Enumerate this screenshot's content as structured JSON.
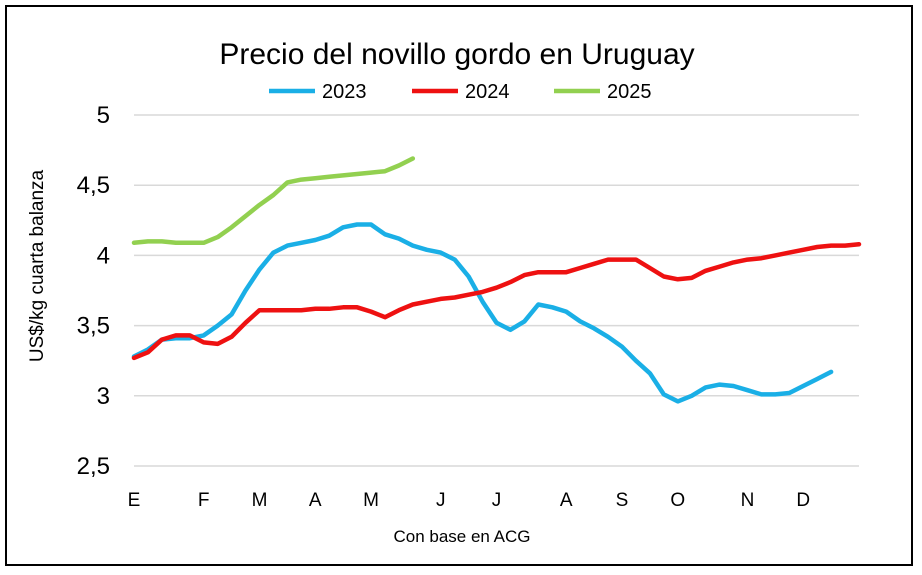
{
  "chart_data": {
    "type": "line",
    "title": "Precio del novillo gordo en Uruguay",
    "xlabel": "Con base en ACG",
    "ylabel": "US$/kg cuarta balanza",
    "ylim": [
      2.5,
      5
    ],
    "yticks": [
      {
        "value": 2.5,
        "label": "2,5"
      },
      {
        "value": 3,
        "label": "3"
      },
      {
        "value": 3.5,
        "label": "3,5"
      },
      {
        "value": 4,
        "label": "4"
      },
      {
        "value": 4.5,
        "label": "4,5"
      },
      {
        "value": 5,
        "label": "5"
      }
    ],
    "xlim": [
      1,
      53
    ],
    "xticks": [
      {
        "value": 1,
        "label": "E"
      },
      {
        "value": 6,
        "label": "F"
      },
      {
        "value": 10,
        "label": "M"
      },
      {
        "value": 14,
        "label": "A"
      },
      {
        "value": 18,
        "label": "M"
      },
      {
        "value": 23,
        "label": "J"
      },
      {
        "value": 27,
        "label": "J"
      },
      {
        "value": 32,
        "label": "A"
      },
      {
        "value": 36,
        "label": "S"
      },
      {
        "value": 40,
        "label": "O"
      },
      {
        "value": 45,
        "label": "N"
      },
      {
        "value": 49,
        "label": "D"
      }
    ],
    "grid": true,
    "legend_position": "top",
    "series": [
      {
        "name": "2023",
        "color": "#1AAFE6",
        "x": [
          1,
          2,
          3,
          4,
          5,
          6,
          7,
          8,
          9,
          10,
          11,
          12,
          13,
          14,
          15,
          16,
          17,
          18,
          19,
          20,
          21,
          22,
          23,
          24,
          25,
          26,
          27,
          28,
          29,
          30,
          31,
          32,
          33,
          34,
          35,
          36,
          37,
          38,
          39,
          40,
          41,
          42,
          43,
          44,
          45,
          46,
          47,
          48,
          49,
          50,
          51
        ],
        "values": [
          3.28,
          3.33,
          3.4,
          3.41,
          3.41,
          3.43,
          3.5,
          3.58,
          3.75,
          3.9,
          4.02,
          4.07,
          4.09,
          4.11,
          4.14,
          4.2,
          4.22,
          4.22,
          4.15,
          4.12,
          4.07,
          4.04,
          4.02,
          3.97,
          3.85,
          3.67,
          3.52,
          3.47,
          3.53,
          3.65,
          3.63,
          3.6,
          3.53,
          3.48,
          3.42,
          3.35,
          3.25,
          3.16,
          3.01,
          2.96,
          3.0,
          3.06,
          3.08,
          3.07,
          3.04,
          3.01,
          3.01,
          3.02,
          3.07,
          3.12,
          3.17
        ]
      },
      {
        "name": "2024",
        "color": "#EE1111",
        "x": [
          1,
          2,
          3,
          4,
          5,
          6,
          7,
          8,
          9,
          10,
          11,
          12,
          13,
          14,
          15,
          16,
          17,
          18,
          19,
          20,
          21,
          22,
          23,
          24,
          25,
          26,
          27,
          28,
          29,
          30,
          31,
          32,
          33,
          34,
          35,
          36,
          37,
          38,
          39,
          40,
          41,
          42,
          43,
          44,
          45,
          46,
          47,
          48,
          49,
          50,
          51,
          52,
          53
        ],
        "values": [
          3.27,
          3.31,
          3.4,
          3.43,
          3.43,
          3.38,
          3.37,
          3.42,
          3.52,
          3.61,
          3.61,
          3.61,
          3.61,
          3.62,
          3.62,
          3.63,
          3.63,
          3.6,
          3.56,
          3.61,
          3.65,
          3.67,
          3.69,
          3.7,
          3.72,
          3.74,
          3.77,
          3.81,
          3.86,
          3.88,
          3.88,
          3.88,
          3.91,
          3.94,
          3.97,
          3.97,
          3.97,
          3.91,
          3.85,
          3.83,
          3.84,
          3.89,
          3.92,
          3.95,
          3.97,
          3.98,
          4.0,
          4.02,
          4.04,
          4.06,
          4.07,
          4.07,
          4.08
        ]
      },
      {
        "name": "2025",
        "color": "#92D050",
        "x": [
          1,
          2,
          3,
          4,
          5,
          6,
          7,
          8,
          9,
          10,
          11,
          12,
          13,
          14,
          15,
          16,
          17,
          18,
          19,
          20,
          21
        ],
        "values": [
          4.09,
          4.1,
          4.1,
          4.09,
          4.09,
          4.09,
          4.13,
          4.2,
          4.28,
          4.36,
          4.43,
          4.52,
          4.54,
          4.55,
          4.56,
          4.57,
          4.58,
          4.59,
          4.6,
          4.64,
          4.69
        ]
      }
    ]
  }
}
